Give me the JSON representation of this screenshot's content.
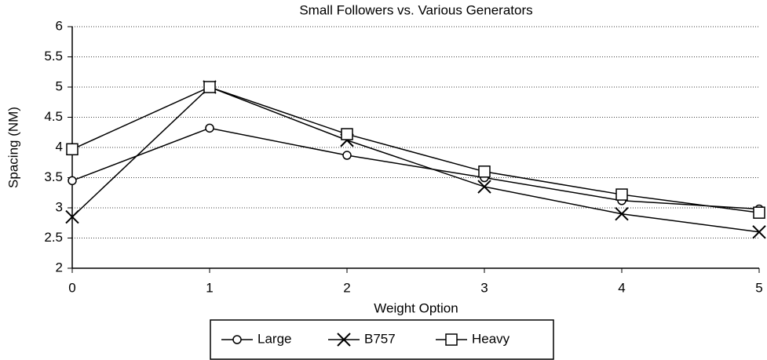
{
  "chart_data": {
    "type": "line",
    "title": "Small Followers vs. Various Generators",
    "xlabel": "Weight Option",
    "ylabel": "Spacing (NM)",
    "x": [
      0,
      1,
      2,
      3,
      4,
      5
    ],
    "xlim": [
      0,
      5
    ],
    "xticks": [
      0,
      1,
      2,
      3,
      4,
      5
    ],
    "ylim": [
      2,
      6
    ],
    "yticks": [
      2,
      2.5,
      3,
      3.5,
      4,
      4.5,
      5,
      5.5,
      6
    ],
    "grid": true,
    "legend": "bottom",
    "series": [
      {
        "name": "Large",
        "color": "#000000",
        "marker": "circle",
        "values": [
          3.45,
          4.32,
          3.87,
          3.5,
          3.12,
          2.98
        ]
      },
      {
        "name": "B757",
        "color": "#000000",
        "marker": "x",
        "values": [
          2.85,
          5.0,
          4.12,
          3.35,
          2.9,
          2.6
        ]
      },
      {
        "name": "Heavy",
        "color": "#000000",
        "marker": "square",
        "values": [
          3.97,
          5.0,
          4.22,
          3.6,
          3.22,
          2.92
        ]
      }
    ]
  }
}
